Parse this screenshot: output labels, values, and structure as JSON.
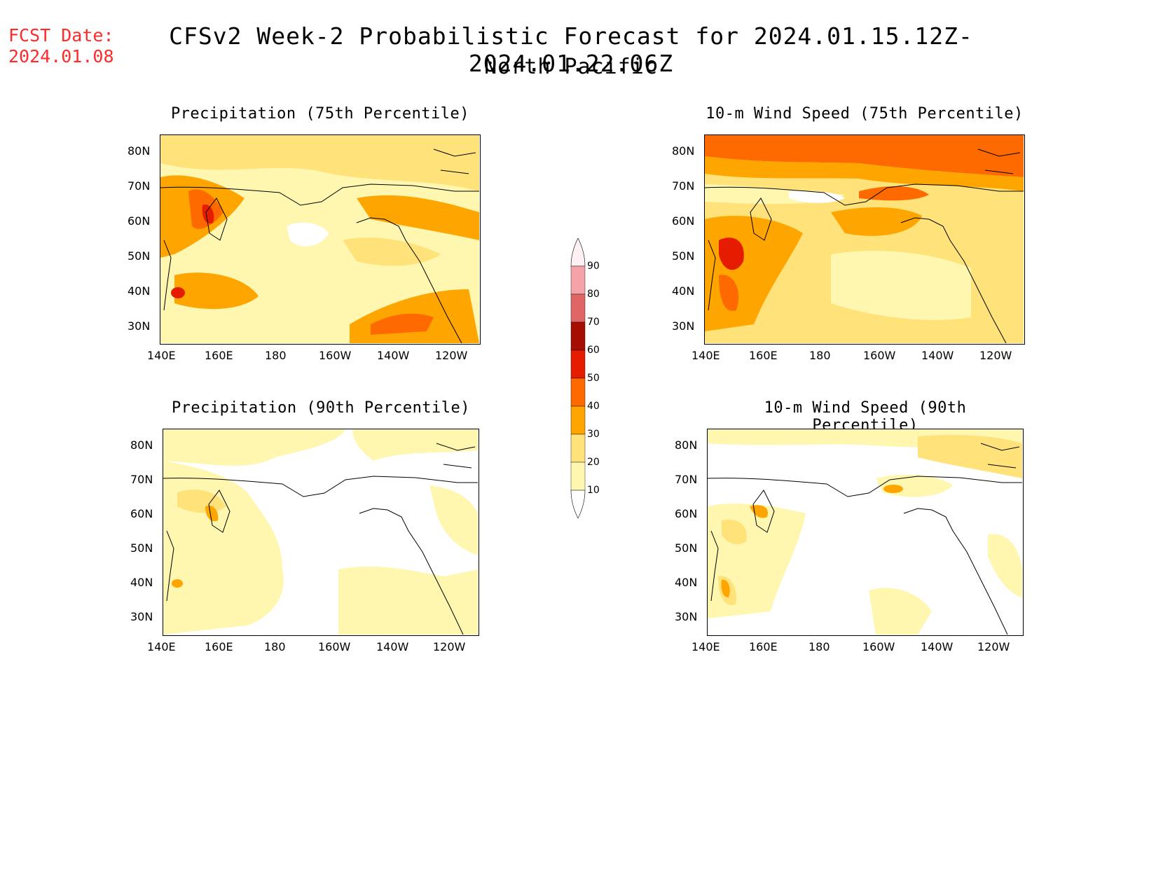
{
  "header": {
    "fcst_label": "FCST Date:",
    "fcst_date": "2024.01.08",
    "title": "CFSv2 Week-2 Probabilistic Forecast for 2024.01.15.12Z-2024.01.22.06Z",
    "subtitle": "North Pacific"
  },
  "colors": {
    "fcst_text": "#ff2a2a",
    "levels": [
      "#fff7b0",
      "#ffe27a",
      "#ffa500",
      "#ff6a00",
      "#e51c00",
      "#a50e00",
      "#e06666",
      "#f4a3a8",
      "#ffe4e8"
    ]
  },
  "axes": {
    "y_ticks": [
      "80N",
      "70N",
      "60N",
      "50N",
      "40N",
      "30N"
    ],
    "x_ticks": [
      "140E",
      "160E",
      "180",
      "160W",
      "140W",
      "120W"
    ]
  },
  "legend": {
    "labels": [
      "90",
      "80",
      "70",
      "60",
      "50",
      "40",
      "30",
      "20",
      "10"
    ]
  },
  "panels": [
    {
      "title": "Precipitation (75th Percentile)"
    },
    {
      "title": "10-m Wind Speed (75th Percentile)"
    },
    {
      "title": "Precipitation (90th Percentile)"
    },
    {
      "title": "10-m Wind Speed (90th Percentile)"
    }
  ]
}
